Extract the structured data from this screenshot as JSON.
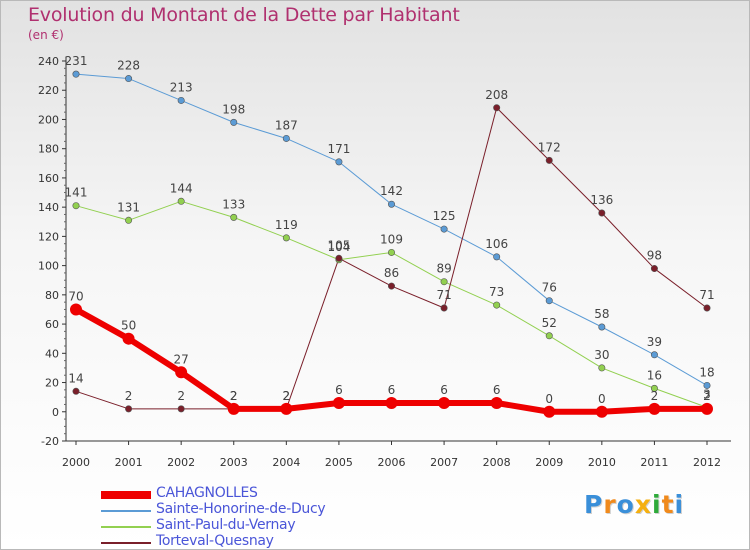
{
  "title": "Evolution du Montant de la Dette par Habitant",
  "subtitle": "(en €)",
  "logo": {
    "text": "Proxiti",
    "colors": [
      "#3a8fd9",
      "#f08a1c",
      "#3a8fd9",
      "#f5b010",
      "#2eaa3a",
      "#f08a1c",
      "#3a8fd9"
    ]
  },
  "chart_data": {
    "type": "line",
    "x": [
      2000,
      2001,
      2002,
      2003,
      2004,
      2005,
      2006,
      2007,
      2008,
      2009,
      2010,
      2011,
      2012
    ],
    "ylim": [
      -20,
      240
    ],
    "yticks": [
      -20,
      0,
      20,
      40,
      60,
      80,
      100,
      120,
      140,
      160,
      180,
      200,
      220,
      240
    ],
    "grid": false,
    "legend_position": "bottom-left",
    "series": [
      {
        "name": "CAHAGNOLLES",
        "color": "#ee0000",
        "width": 6,
        "label_rule": "above",
        "values": [
          70,
          50,
          27,
          2,
          2,
          6,
          6,
          6,
          6,
          0,
          0,
          2,
          2
        ]
      },
      {
        "name": "Sainte-Honorine-de-Ducy",
        "color": "#5b9bd5",
        "width": 1,
        "label_rule": "above",
        "values": [
          231,
          228,
          213,
          198,
          187,
          171,
          142,
          125,
          106,
          76,
          58,
          39,
          18
        ]
      },
      {
        "name": "Saint-Paul-du-Vernay",
        "color": "#92d050",
        "width": 1,
        "label_rule": "above",
        "values": [
          141,
          131,
          144,
          133,
          119,
          104,
          109,
          89,
          73,
          52,
          30,
          16,
          3
        ]
      },
      {
        "name": "Torteval-Quesnay",
        "color": "#7a1f2a",
        "width": 1,
        "label_rule": "above",
        "values": [
          14,
          2,
          2,
          2,
          2,
          105,
          86,
          71,
          208,
          172,
          136,
          98,
          71
        ]
      }
    ]
  }
}
